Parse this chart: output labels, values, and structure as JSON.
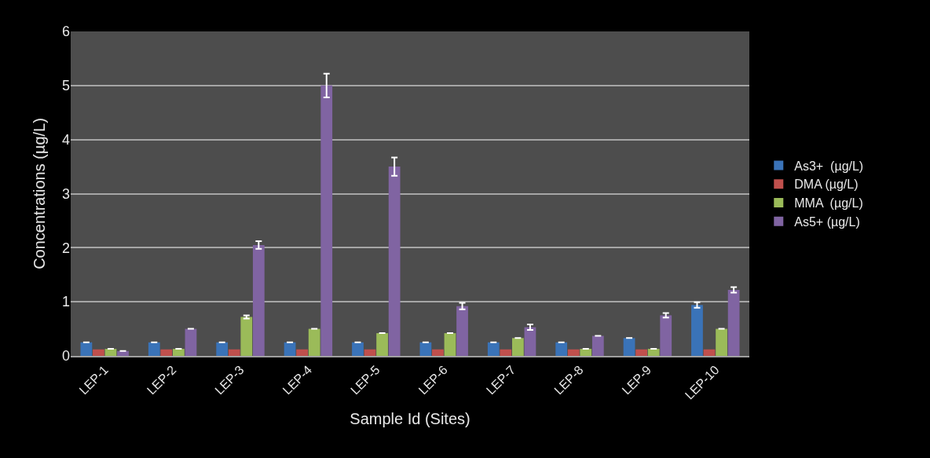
{
  "chart_data": {
    "type": "bar",
    "xlabel": "Sample Id (Sites)",
    "ylabel": "Concentrations (µg/L)",
    "categories": [
      "LEP-1",
      "LEP-2",
      "LEP-3",
      "LEP-4",
      "LEP-5",
      "LEP-6",
      "LEP-7",
      "LEP-8",
      "LEP-9",
      "LEP-10"
    ],
    "series": [
      {
        "name": "As3+  (µg/L)",
        "color": "#3a73b8",
        "values": [
          0.25,
          0.25,
          0.25,
          0.25,
          0.25,
          0.25,
          0.25,
          0.25,
          0.33,
          0.94
        ],
        "errors": [
          null,
          null,
          null,
          null,
          null,
          null,
          null,
          null,
          null,
          0.05
        ]
      },
      {
        "name": "DMA (µg/L)",
        "color": "#c0504d",
        "values": [
          0.12,
          0.12,
          0.12,
          0.12,
          0.12,
          0.12,
          0.12,
          0.12,
          0.12,
          0.12
        ]
      },
      {
        "name": "MMA  (µg/L)",
        "color": "#9bbb59",
        "values": [
          0.13,
          0.13,
          0.72,
          0.5,
          0.42,
          0.42,
          0.33,
          0.13,
          0.13,
          0.5
        ],
        "errors": [
          null,
          null,
          0.03,
          null,
          null,
          null,
          null,
          null,
          null,
          null
        ]
      },
      {
        "name": "As5+ (µg/L)",
        "color": "#8064a2",
        "values": [
          0.09,
          0.5,
          2.05,
          5.0,
          3.5,
          0.92,
          0.53,
          0.37,
          0.75,
          1.22
        ],
        "errors": [
          null,
          null,
          0.07,
          0.22,
          0.17,
          0.06,
          0.05,
          null,
          0.04,
          0.05
        ]
      }
    ],
    "ylim": [
      0,
      6
    ],
    "yticks": [
      0,
      1,
      2,
      3,
      4,
      5,
      6
    ],
    "grid": "y",
    "legend": "right"
  }
}
